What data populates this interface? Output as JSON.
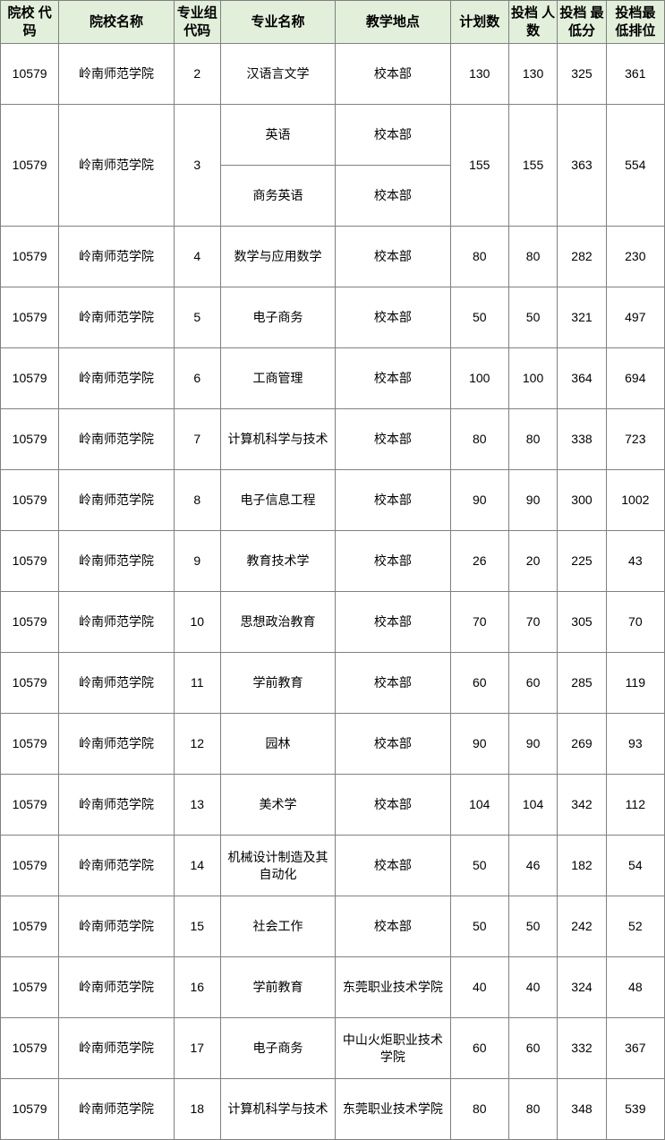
{
  "table": {
    "header_bg": "#e2efda",
    "columns": [
      "院校\n代码",
      "院校名称",
      "专业组\n代码",
      "专业名称",
      "教学地点",
      "计划数",
      "投档\n人数",
      "投档\n最低分",
      "投档最\n低排位"
    ],
    "rows": [
      {
        "cells": [
          "10579",
          "岭南师范学院",
          "2",
          "汉语言文学",
          "校本部",
          "130",
          "130",
          "325",
          "361"
        ],
        "rowspan": null
      },
      {
        "cells": [
          "10579",
          "岭南师范学院",
          "3",
          "英语",
          "校本部",
          "155",
          "155",
          "363",
          "554"
        ],
        "rowspan": {
          "c0": 2,
          "c1": 2,
          "c2": 2,
          "c5": 2,
          "c6": 2,
          "c7": 2,
          "c8": 2
        }
      },
      {
        "cells": [
          null,
          null,
          null,
          "商务英语",
          "校本部",
          null,
          null,
          null,
          null
        ],
        "rowspan": null
      },
      {
        "cells": [
          "10579",
          "岭南师范学院",
          "4",
          "数学与应用数学",
          "校本部",
          "80",
          "80",
          "282",
          "230"
        ],
        "rowspan": null
      },
      {
        "cells": [
          "10579",
          "岭南师范学院",
          "5",
          "电子商务",
          "校本部",
          "50",
          "50",
          "321",
          "497"
        ],
        "rowspan": null
      },
      {
        "cells": [
          "10579",
          "岭南师范学院",
          "6",
          "工商管理",
          "校本部",
          "100",
          "100",
          "364",
          "694"
        ],
        "rowspan": null
      },
      {
        "cells": [
          "10579",
          "岭南师范学院",
          "7",
          "计算机科学与技术",
          "校本部",
          "80",
          "80",
          "338",
          "723"
        ],
        "rowspan": null
      },
      {
        "cells": [
          "10579",
          "岭南师范学院",
          "8",
          "电子信息工程",
          "校本部",
          "90",
          "90",
          "300",
          "1002"
        ],
        "rowspan": null
      },
      {
        "cells": [
          "10579",
          "岭南师范学院",
          "9",
          "教育技术学",
          "校本部",
          "26",
          "20",
          "225",
          "43"
        ],
        "rowspan": null
      },
      {
        "cells": [
          "10579",
          "岭南师范学院",
          "10",
          "思想政治教育",
          "校本部",
          "70",
          "70",
          "305",
          "70"
        ],
        "rowspan": null
      },
      {
        "cells": [
          "10579",
          "岭南师范学院",
          "11",
          "学前教育",
          "校本部",
          "60",
          "60",
          "285",
          "119"
        ],
        "rowspan": null
      },
      {
        "cells": [
          "10579",
          "岭南师范学院",
          "12",
          "园林",
          "校本部",
          "90",
          "90",
          "269",
          "93"
        ],
        "rowspan": null
      },
      {
        "cells": [
          "10579",
          "岭南师范学院",
          "13",
          "美术学",
          "校本部",
          "104",
          "104",
          "342",
          "112"
        ],
        "rowspan": null
      },
      {
        "cells": [
          "10579",
          "岭南师范学院",
          "14",
          "机械设计制造及其自动化",
          "校本部",
          "50",
          "46",
          "182",
          "54"
        ],
        "rowspan": null
      },
      {
        "cells": [
          "10579",
          "岭南师范学院",
          "15",
          "社会工作",
          "校本部",
          "50",
          "50",
          "242",
          "52"
        ],
        "rowspan": null
      },
      {
        "cells": [
          "10579",
          "岭南师范学院",
          "16",
          "学前教育",
          "东莞职业技术学院",
          "40",
          "40",
          "324",
          "48"
        ],
        "rowspan": null
      },
      {
        "cells": [
          "10579",
          "岭南师范学院",
          "17",
          "电子商务",
          "中山火炬职业技术学院",
          "60",
          "60",
          "332",
          "367"
        ],
        "rowspan": null
      },
      {
        "cells": [
          "10579",
          "岭南师范学院",
          "18",
          "计算机科学与技术",
          "东莞职业技术学院",
          "80",
          "80",
          "348",
          "539"
        ],
        "rowspan": null
      }
    ]
  }
}
